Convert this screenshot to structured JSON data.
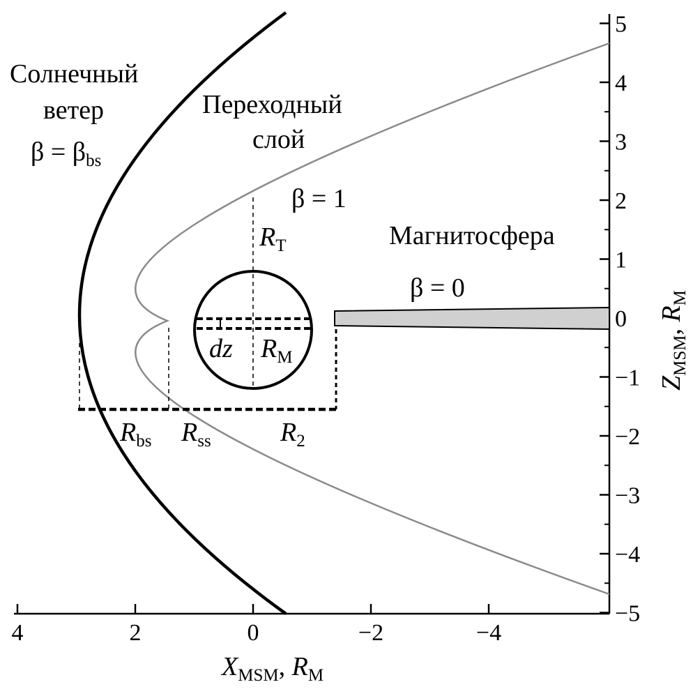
{
  "regions": {
    "solar_wind": {
      "line1": "Солнечный",
      "line2": "ветер",
      "beta": "β = β",
      "beta_sub": "bs"
    },
    "transition_layer": {
      "line1": "Переходный",
      "line2": "слой",
      "beta": "β = 1"
    },
    "magnetosphere": {
      "title": "Магнитосфера",
      "beta": "β = 0"
    }
  },
  "labels": {
    "R": "R",
    "RT_sub": "T",
    "RM_sub": "M",
    "Rbs_sub": "bs",
    "Rss_sub": "ss",
    "R2_sub": "2",
    "dz": "dz"
  },
  "axes": {
    "x": {
      "var": "X",
      "sub": "MSM",
      "unit_sep": ", ",
      "unit": "R",
      "unit_sub": "M",
      "ticks": [
        "4",
        "2",
        "0",
        "−2",
        "−4"
      ],
      "range": [
        4,
        -6
      ]
    },
    "y": {
      "var": "Z",
      "sub": "MSM",
      "unit_sep": ", ",
      "unit": "R",
      "unit_sub": "M",
      "ticks": [
        "5",
        "4",
        "3",
        "2",
        "1",
        "0",
        "−1",
        "−2",
        "−3",
        "−4",
        "−5"
      ],
      "range": [
        -5,
        5
      ]
    }
  },
  "colors": {
    "line": "#000000",
    "magnetopause": "#8a8a8a",
    "tail": "#d0d0d0"
  }
}
